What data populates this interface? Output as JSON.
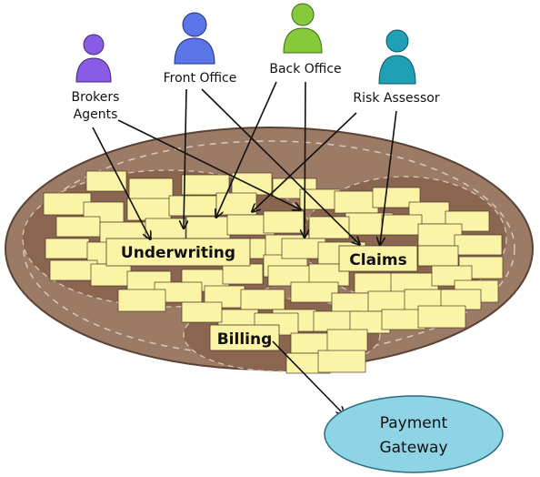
{
  "actors": [
    {
      "id": "brokers",
      "lines": [
        "Brokers",
        "Agents"
      ],
      "color": "#8a5ce6"
    },
    {
      "id": "front",
      "lines": [
        "Front Office"
      ],
      "color": "#5b74e8"
    },
    {
      "id": "back",
      "lines": [
        "Back Office"
      ],
      "color": "#86c93a"
    },
    {
      "id": "risk",
      "lines": [
        "Risk Assessor"
      ],
      "color": "#1fa0b4"
    }
  ],
  "contexts": {
    "underwriting": "Underwriting",
    "claims": "Claims",
    "billing": "Billing"
  },
  "external": {
    "payment_gateway": [
      "Payment",
      "Gateway"
    ]
  },
  "colors": {
    "platter": "#9c7b66",
    "zone": "#8a6650",
    "sticky": "#fbf4a6",
    "gateway": "#8fd4e4"
  }
}
